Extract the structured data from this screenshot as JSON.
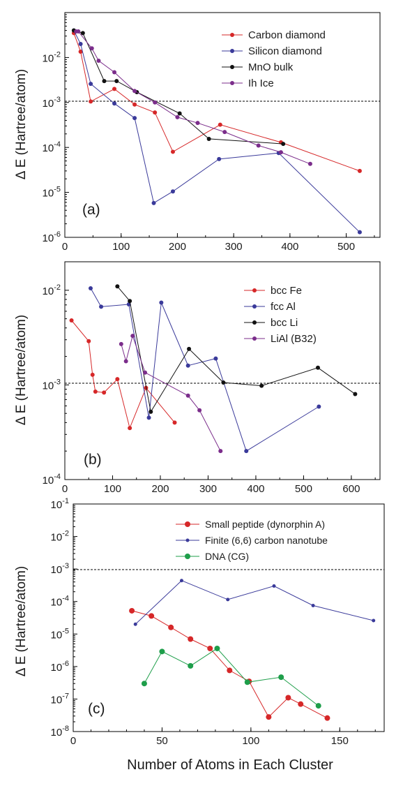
{
  "xlabel": "Number of Atoms in Each Cluster",
  "chart_data": [
    {
      "type": "scatter",
      "panel_label": "(a)",
      "ylabel": "Δ E (Hartree/atom)",
      "xscale": "linear",
      "yscale": "log",
      "xlim": [
        0,
        560
      ],
      "ylim": [
        1e-06,
        0.1
      ],
      "xticks": [
        "0",
        "100",
        "200",
        "300",
        "400",
        "500"
      ],
      "yticks": [
        "10",
        "10",
        "10",
        "10",
        "10"
      ],
      "ytick_exponents": [
        "-6",
        "-5",
        "-4",
        "-3",
        "-2"
      ],
      "threshold": 0.001,
      "legend_position": "top-right",
      "series": [
        {
          "name": "Carbon diamond",
          "color": "#d62728",
          "marker_size": 3,
          "x": [
            16,
            28,
            46,
            88,
            124,
            160,
            192,
            276,
            384,
            524
          ],
          "y": [
            0.035,
            0.0135,
            0.00105,
            0.002,
            0.0009,
            0.0006,
            8e-05,
            0.00032,
            0.00013,
            3e-05
          ]
        },
        {
          "name": "Silicon diamond",
          "color": "#3a3a9a",
          "marker_size": 3,
          "x": [
            16,
            28,
            46,
            88,
            124,
            158,
            192,
            274,
            380,
            524
          ],
          "y": [
            0.04,
            0.02,
            0.0026,
            0.00095,
            0.00045,
            5.8e-06,
            1.05e-05,
            5.5e-05,
            7.5e-05,
            1.3e-06
          ]
        },
        {
          "name": "MnO bulk",
          "color": "#111111",
          "marker_size": 3,
          "x": [
            16,
            32,
            70,
            92,
            128,
            204,
            256,
            388
          ],
          "y": [
            0.04,
            0.035,
            0.003,
            0.003,
            0.0017,
            0.00057,
            0.000155,
            0.00012
          ]
        },
        {
          "name": "Ih Ice",
          "color": "#7b2d8b",
          "marker_size": 3,
          "x": [
            20,
            24,
            48,
            60,
            88,
            124,
            160,
            200,
            236,
            284,
            344,
            384,
            436
          ],
          "y": [
            0.038,
            0.038,
            0.016,
            0.0085,
            0.0047,
            0.0018,
            0.001,
            0.00047,
            0.00035,
            0.00022,
            0.00011,
            7.8e-05,
            4.3e-05
          ]
        }
      ]
    },
    {
      "type": "scatter",
      "panel_label": "(b)",
      "ylabel": "Δ E (Hartree/atom)",
      "xscale": "linear",
      "yscale": "log",
      "xlim": [
        0,
        660
      ],
      "ylim": [
        0.0001,
        0.02
      ],
      "xticks": [
        "0",
        "100",
        "200",
        "300",
        "400",
        "500",
        "600"
      ],
      "yticks": [
        "10",
        "10",
        "10"
      ],
      "ytick_exponents": [
        "-4",
        "-3",
        "-2"
      ],
      "threshold": 0.001,
      "legend_position": "top-right",
      "series": [
        {
          "name": "bcc Fe",
          "color": "#d62728",
          "marker_size": 3,
          "x": [
            14,
            50,
            58,
            64,
            82,
            110,
            136,
            170,
            230
          ],
          "y": [
            0.0048,
            0.0029,
            0.00128,
            0.00085,
            0.00083,
            0.00115,
            0.00035,
            0.00093,
            0.0004
          ]
        },
        {
          "name": "fcc Al",
          "color": "#3a3a9a",
          "marker_size": 3,
          "x": [
            54,
            76,
            134,
            176,
            202,
            258,
            316,
            380,
            532
          ],
          "y": [
            0.0105,
            0.0067,
            0.0071,
            0.00045,
            0.0074,
            0.0016,
            0.0019,
            0.0002,
            0.00059
          ]
        },
        {
          "name": "bcc Li",
          "color": "#111111",
          "marker_size": 3,
          "x": [
            110,
            136,
            180,
            260,
            332,
            412,
            530,
            608
          ],
          "y": [
            0.011,
            0.0077,
            0.00052,
            0.0024,
            0.00106,
            0.00098,
            0.00152,
            0.0008
          ]
        },
        {
          "name": "LiAl (B32)",
          "color": "#7b2d8b",
          "marker_size": 3,
          "x": [
            118,
            128,
            142,
            168,
            258,
            282,
            326
          ],
          "y": [
            0.0027,
            0.00178,
            0.0033,
            0.00135,
            0.00077,
            0.00054,
            0.0002
          ]
        }
      ]
    },
    {
      "type": "scatter",
      "panel_label": "(c)",
      "ylabel": "Δ E (Hartree/atom)",
      "xscale": "linear",
      "yscale": "log",
      "xlim": [
        0,
        175
      ],
      "ylim": [
        1e-08,
        0.1
      ],
      "xticks": [
        "0",
        "50",
        "100",
        "150"
      ],
      "yticks": [
        "10",
        "10",
        "10",
        "10",
        "10",
        "10",
        "10",
        "10"
      ],
      "ytick_exponents": [
        "-8",
        "-7",
        "-6",
        "-5",
        "-4",
        "-3",
        "-2",
        "-1"
      ],
      "threshold": 0.001,
      "legend_position": "top-right",
      "series": [
        {
          "name": "Small peptide (dynorphin A)",
          "color": "#d62728",
          "marker_size": 4,
          "x": [
            33,
            44,
            55,
            66,
            77,
            88,
            99,
            110,
            121,
            128,
            143
          ],
          "y": [
            5.2e-05,
            3.6e-05,
            1.6e-05,
            7e-06,
            3.6e-06,
            7.6e-07,
            3.5e-07,
            2.8e-08,
            1.1e-07,
            7e-08,
            2.6e-08
          ]
        },
        {
          "name": "Finite (6,6) carbon nanotube",
          "color": "#3a3a9a",
          "marker_size": 2.5,
          "x": [
            35,
            61,
            87,
            113,
            135,
            169
          ],
          "y": [
            2e-05,
            0.00044,
            0.000115,
            0.0003,
            7.5e-05,
            2.6e-05
          ]
        },
        {
          "name": "DNA (CG)",
          "color": "#1e9e4a",
          "marker_size": 4,
          "x": [
            40,
            50,
            66,
            81,
            98,
            117,
            138
          ],
          "y": [
            3e-07,
            2.9e-06,
            1.05e-06,
            3.6e-06,
            3.3e-07,
            4.7e-07,
            6.2e-08
          ]
        }
      ]
    }
  ]
}
